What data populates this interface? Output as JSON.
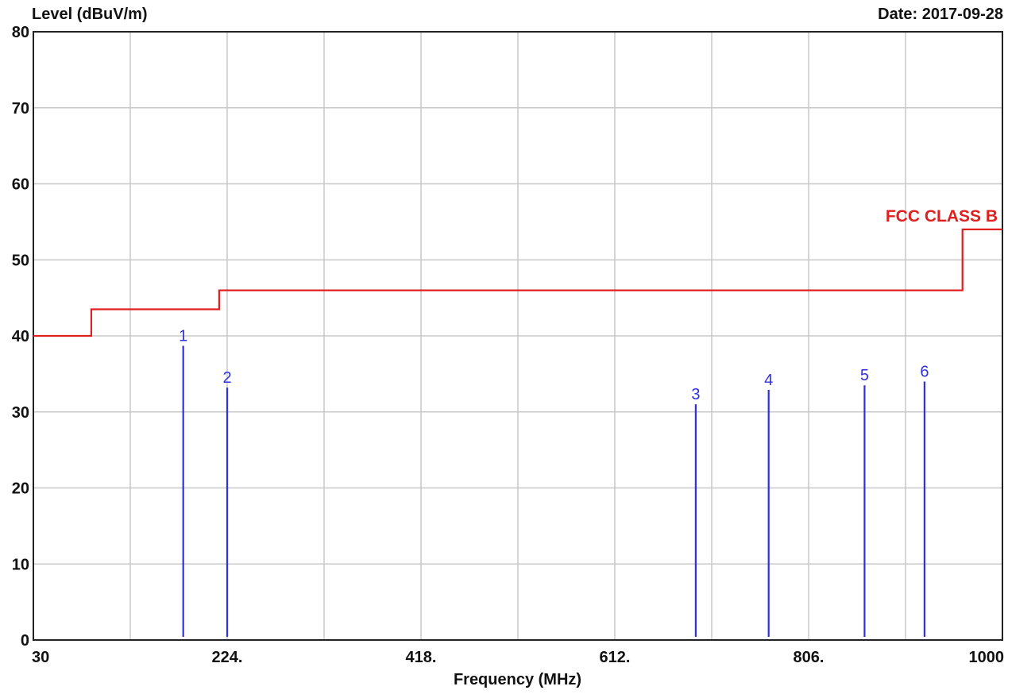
{
  "header": {
    "ylabel": "Level (dBuV/m)",
    "date": "Date: 2017-09-28"
  },
  "chart_data": {
    "type": "bar",
    "xlabel": "Frequency (MHz)",
    "ylabel": "Level (dBuV/m)",
    "xlim": [
      30,
      1000
    ],
    "ylim": [
      0,
      80
    ],
    "x_ticks": [
      {
        "value": 30,
        "label": "30"
      },
      {
        "value": 224,
        "label": "224."
      },
      {
        "value": 418,
        "label": "418."
      },
      {
        "value": 612,
        "label": "612."
      },
      {
        "value": 806,
        "label": "806."
      },
      {
        "value": 1000,
        "label": "1000"
      }
    ],
    "x_grid": [
      30,
      127,
      224,
      321,
      418,
      515,
      612,
      709,
      806,
      903,
      1000
    ],
    "y_ticks": [
      0,
      10,
      20,
      30,
      40,
      50,
      60,
      70,
      80
    ],
    "grid": true,
    "limit_line": {
      "name": "FCC CLASS B",
      "color": "#e02020",
      "points": [
        [
          30,
          40
        ],
        [
          88,
          40
        ],
        [
          88,
          43.5
        ],
        [
          216,
          43.5
        ],
        [
          216,
          46
        ],
        [
          960,
          46
        ],
        [
          960,
          54
        ],
        [
          1000,
          54
        ]
      ]
    },
    "markers": {
      "color": "#3030e0",
      "items": [
        {
          "label": "1",
          "x": 180,
          "y": 38.7
        },
        {
          "label": "2",
          "x": 224,
          "y": 33.2
        },
        {
          "label": "3",
          "x": 693,
          "y": 31.0
        },
        {
          "label": "4",
          "x": 766,
          "y": 32.9
        },
        {
          "label": "5",
          "x": 862,
          "y": 33.5
        },
        {
          "label": "6",
          "x": 922,
          "y": 34.0
        }
      ]
    }
  }
}
